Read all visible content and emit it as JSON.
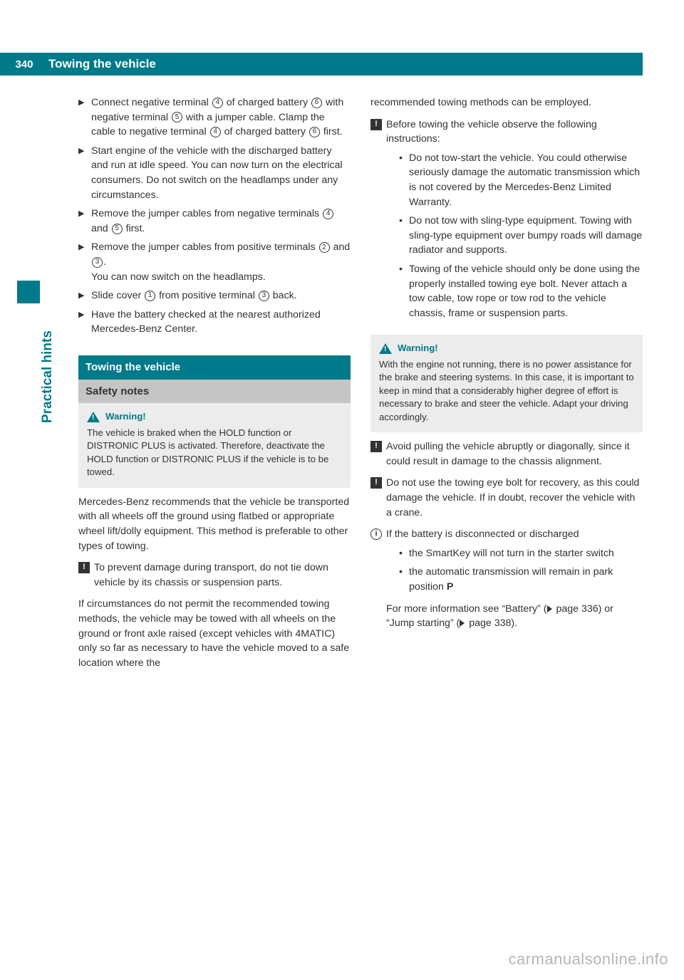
{
  "header": {
    "page_number": "340",
    "title": "Towing the vehicle"
  },
  "side_label": "Practical hints",
  "colors": {
    "brand": "#007a8a",
    "grey_bg": "#c5c5c5",
    "light_grey": "#ececec",
    "text": "#333333"
  },
  "left_column": {
    "steps": [
      {
        "html": "Connect negative terminal <span class='circled'>4</span> of charged battery <span class='circled'>6</span> with negative terminal <span class='circled'>5</span> with a jumper cable. Clamp the cable to negative terminal <span class='circled'>4</span> of charged battery <span class='circled'>6</span> first."
      },
      {
        "html": "Start engine of the vehicle with the discharged battery and run at idle speed. You can now turn on the electrical consumers. Do not switch on the headlamps under any circumstances."
      },
      {
        "html": "Remove the jumper cables from negative terminals <span class='circled'>4</span> and <span class='circled'>5</span> first."
      },
      {
        "html": "Remove the jumper cables from positive terminals <span class='circled'>2</span> and <span class='circled'>3</span>.<br>You can now switch on the headlamps."
      },
      {
        "html": "Slide cover <span class='circled'>1</span> from positive terminal <span class='circled'>3</span> back."
      },
      {
        "html": "Have the battery checked at the nearest authorized Mercedes-Benz Center."
      }
    ],
    "section_heading": "Towing the vehicle",
    "sub_heading": "Safety notes",
    "warning1": {
      "title": "Warning!",
      "body": "The vehicle is braked when the HOLD function or DISTRONIC PLUS is activated. Therefore, deactivate the HOLD function or DISTRONIC PLUS if the vehicle is to be towed."
    },
    "para1": "Mercedes-Benz recommends that the vehicle be transported with all wheels off the ground using flatbed or appropriate wheel lift/dolly equipment. This method is preferable to other types of towing.",
    "note1": "To prevent damage during transport, do not tie down vehicle by its chassis or suspension parts.",
    "para2": "If circumstances do not permit the recommended towing methods, the vehicle may be towed with all wheels on the ground or front axle raised (except vehicles with 4MATIC) only so far as necessary to have the vehicle moved to a safe location where the"
  },
  "right_column": {
    "para1": "recommended towing methods can be employed.",
    "note1_lead": "Before towing the vehicle observe the following instructions:",
    "note1_bullets": [
      "Do not tow-start the vehicle. You could otherwise seriously damage the automatic transmission which is not covered by the Mercedes-Benz Limited Warranty.",
      "Do not tow with sling-type equipment. Towing with sling-type equipment over bumpy roads will damage radiator and supports.",
      "Towing of the vehicle should only be done using the properly installed towing eye bolt. Never attach a tow cable, tow rope or tow rod to the vehicle chassis, frame or suspension parts."
    ],
    "warning2": {
      "title": "Warning!",
      "body": "With the engine not running, there is no power assistance for the brake and steering systems. In this case, it is important to keep in mind that a considerably higher degree of effort is necessary to brake and steer the vehicle. Adapt your driving accordingly."
    },
    "note2": "Avoid pulling the vehicle abruptly or diagonally, since it could result in damage to the chassis alignment.",
    "note3": "Do not use the towing eye bolt for recovery, as this could damage the vehicle. If in doubt, recover the vehicle with a crane.",
    "info_lead": "If the battery is disconnected or discharged",
    "info_bullets": [
      "the SmartKey will not turn in the starter switch",
      "the automatic transmission will remain in park position <b>P</b>"
    ],
    "info_tail": "For more information see “Battery” (<span class='ref-triangle'></span> page 336) or “Jump starting” (<span class='ref-triangle'></span> page 338)."
  },
  "watermark": "carmanualsonline.info"
}
